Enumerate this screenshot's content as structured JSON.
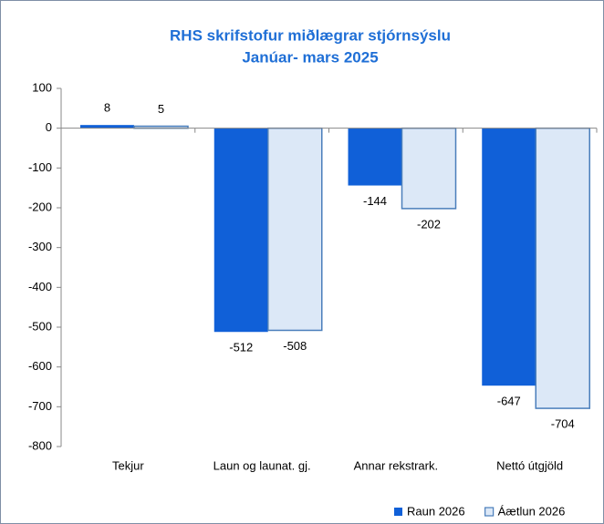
{
  "chart_data": {
    "type": "bar",
    "title": "RHS skrifstofur miðlægrar stjórnsýslu",
    "subtitle": "Janúar- mars 2025",
    "categories": [
      "Tekjur",
      "Laun og launat. gj.",
      "Annar rekstrark.",
      "Nettó útgjöld"
    ],
    "series": [
      {
        "name": "Raun 2026",
        "color": "#1060d8",
        "values": [
          8,
          -512,
          -144,
          -647
        ]
      },
      {
        "name": "Áætlun 2026",
        "color": "#dce8f7",
        "values": [
          5,
          -508,
          -202,
          -704
        ]
      }
    ],
    "ylim": [
      -800,
      100
    ],
    "yticks": [
      -800,
      -700,
      -600,
      -500,
      -400,
      -300,
      -200,
      -100,
      0,
      100
    ],
    "legend": "bottom-right"
  }
}
